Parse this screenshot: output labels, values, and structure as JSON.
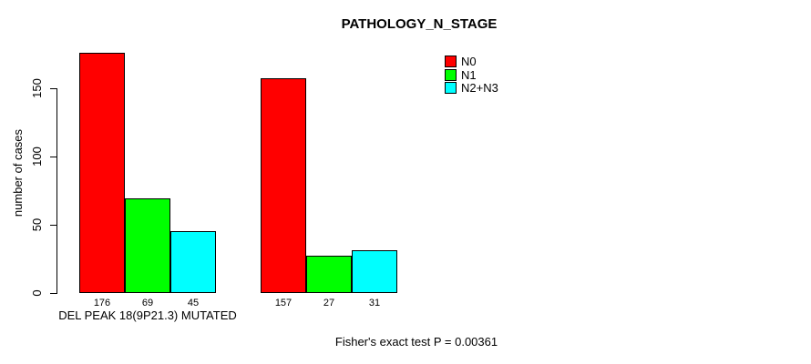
{
  "chart_data": {
    "type": "bar",
    "title": "PATHOLOGY_N_STAGE",
    "ylabel": "number of cases",
    "xlabel": "",
    "yticks": [
      0,
      50,
      100,
      150
    ],
    "ylim": [
      0,
      176
    ],
    "grid": false,
    "legend_position": "top-right",
    "categories": [
      "DEL PEAK 18(9P21.3) MUTATED",
      ""
    ],
    "series": [
      {
        "name": "N0",
        "color": "#ff0000",
        "values": [
          176,
          157
        ]
      },
      {
        "name": "N1",
        "color": "#00ff00",
        "values": [
          69,
          27
        ]
      },
      {
        "name": "N2+N3",
        "color": "#00ffff",
        "values": [
          45,
          31
        ]
      }
    ],
    "bar_value_labels": [
      [
        176,
        69,
        45
      ],
      [
        157,
        27,
        31
      ]
    ],
    "annotation": "Fisher's exact test P = 0.00361"
  },
  "colors": {
    "background": "#ffffff",
    "axis": "#000000",
    "bar_border": "#000000",
    "text": "#000000"
  }
}
